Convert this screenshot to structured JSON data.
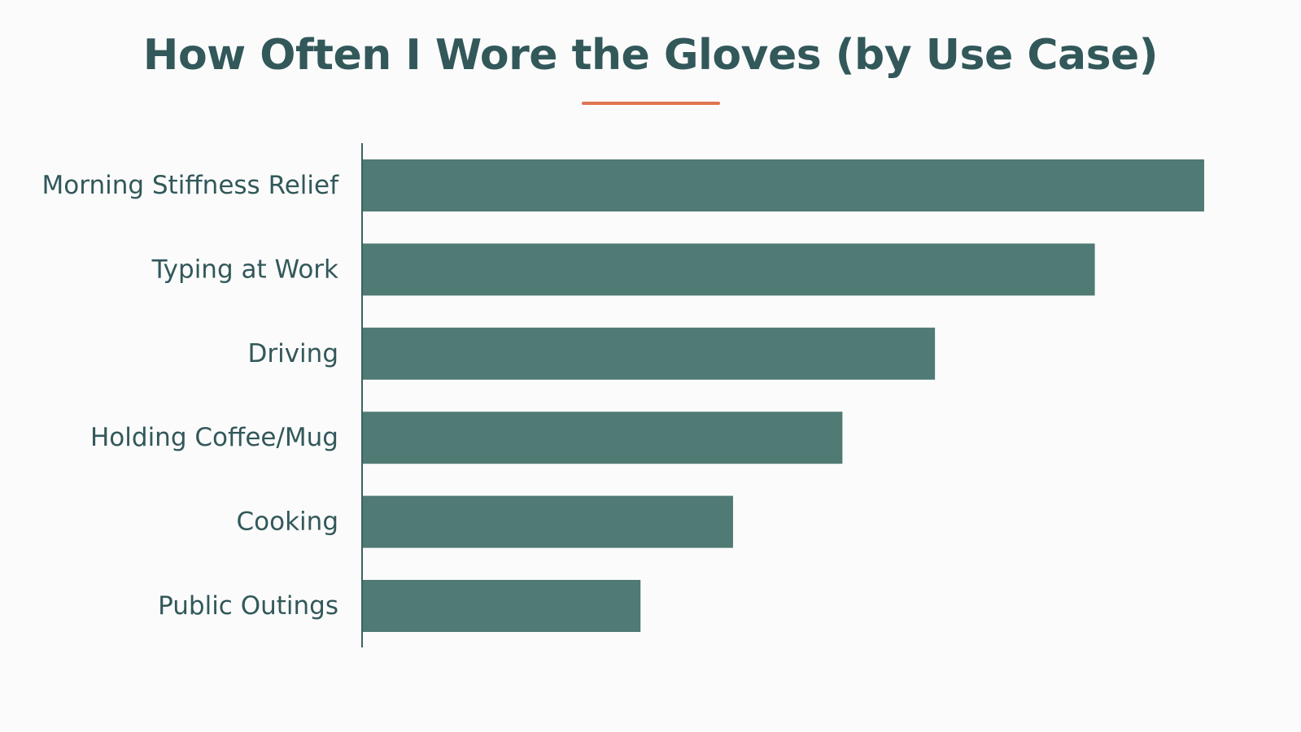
{
  "colors": {
    "background": "#fbfbfb",
    "bar": "#507a74",
    "text": "#32585a",
    "accent": "#e07450",
    "axis": "#3f5f5f"
  },
  "chart_data": {
    "type": "bar",
    "orientation": "horizontal",
    "title": "How Often I Wore the Gloves (by Use Case)",
    "xlabel": "",
    "ylabel": "",
    "categories": [
      "Morning Stiffness Relief",
      "Typing at Work",
      "Driving",
      "Holding Coffee/Mug",
      "Cooking",
      "Public Outings"
    ],
    "values": [
      100,
      87,
      68,
      57,
      44,
      33
    ],
    "xlim": [
      0,
      100
    ],
    "grid": false,
    "legend": "none"
  }
}
